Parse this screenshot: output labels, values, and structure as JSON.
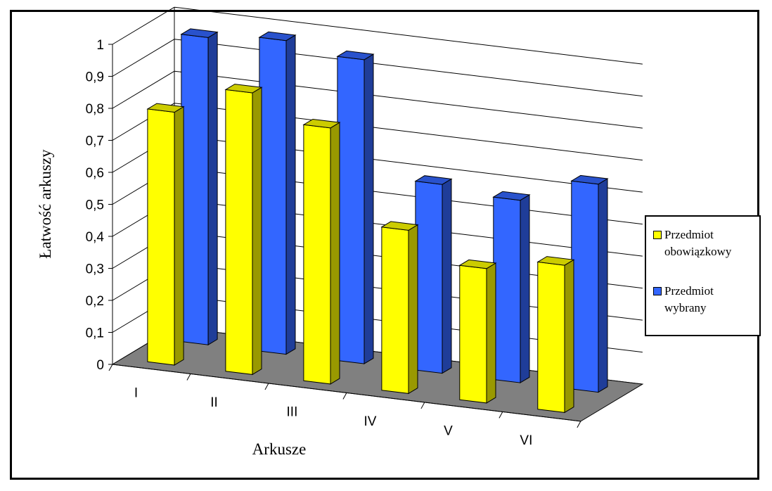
{
  "chart_data": {
    "type": "bar",
    "categories": [
      "I",
      "II",
      "III",
      "IV",
      "V",
      "VI"
    ],
    "series": [
      {
        "name": "Przedmiot obowiązkowy",
        "values": [
          0.79,
          0.88,
          0.8,
          0.51,
          0.42,
          0.46
        ],
        "color": "#ffff00"
      },
      {
        "name": "Przedmiot wybrany",
        "values": [
          0.96,
          0.98,
          0.95,
          0.59,
          0.57,
          0.65
        ],
        "color": "#3366ff"
      }
    ],
    "title": "",
    "xlabel": "Arkusze",
    "ylabel": "Łatwość arkuszy",
    "ylim": [
      0,
      1
    ],
    "yticks": [
      "0",
      "0,1",
      "0,2",
      "0,3",
      "0,4",
      "0,5",
      "0,6",
      "0,7",
      "0,8",
      "0,9",
      "1"
    ],
    "grid": true,
    "legend_position": "right",
    "floor_color": "#808080"
  },
  "legend": {
    "items": [
      {
        "line1": "Przedmiot",
        "line2": "obowiązkowy"
      },
      {
        "line1": "Przedmiot",
        "line2": "wybrany"
      }
    ]
  }
}
